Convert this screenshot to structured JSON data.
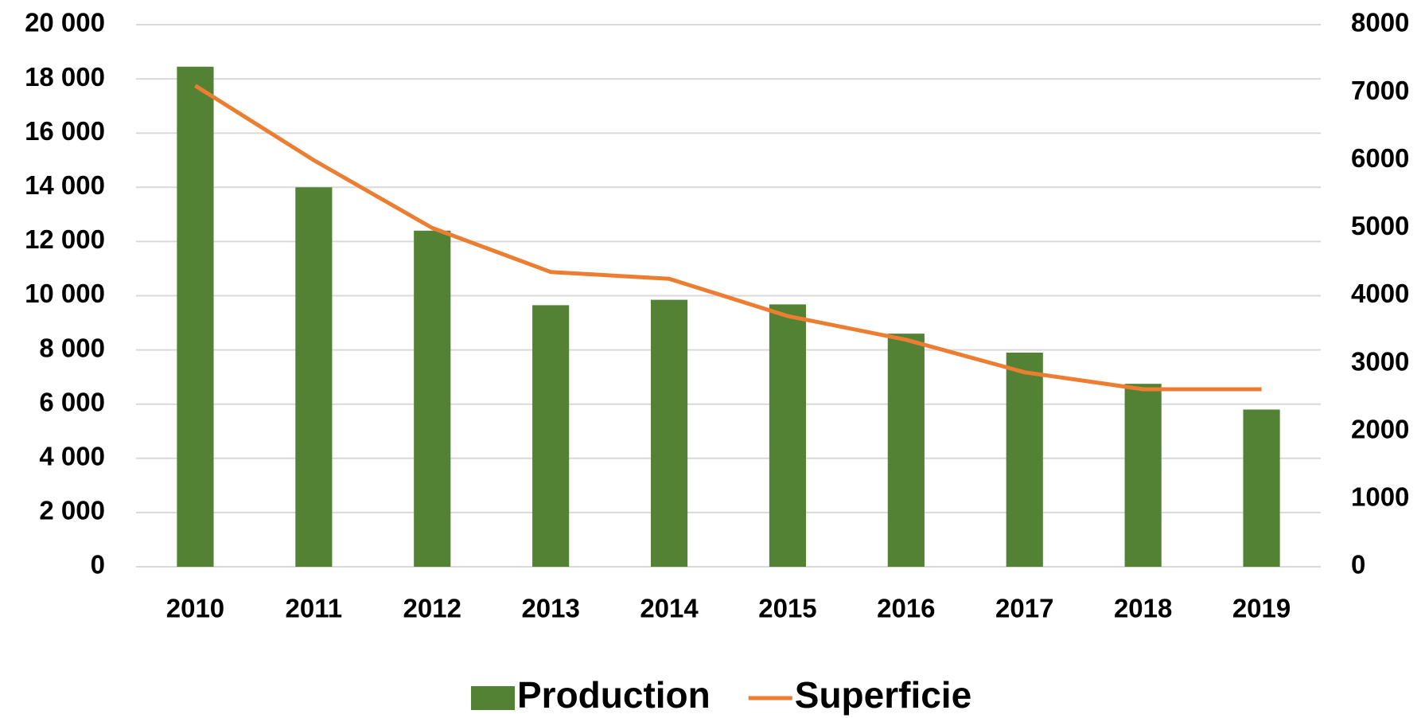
{
  "chart_data": {
    "type": "bar",
    "categories": [
      "2010",
      "2011",
      "2012",
      "2013",
      "2014",
      "2015",
      "2016",
      "2017",
      "2018",
      "2019"
    ],
    "series": [
      {
        "name": "Production",
        "type": "bar",
        "color": "#548235",
        "values": [
          18450,
          14000,
          12400,
          9650,
          9850,
          9680,
          8600,
          7900,
          6750,
          5800
        ]
      },
      {
        "name": "Superficie",
        "type": "line",
        "axis": "y2",
        "color": "#ed7d31",
        "values": [
          7100,
          6000,
          5000,
          4350,
          4250,
          3700,
          3350,
          2870,
          2620,
          2620
        ]
      }
    ],
    "ylim": [
      0,
      20000
    ],
    "yticks": [
      0,
      {
        "value": 2000,
        "label": "2 000"
      },
      {
        "value": 4000,
        "label": "4 000"
      },
      {
        "value": 6000,
        "label": "6 000"
      },
      {
        "value": 8000,
        "label": "8 000"
      },
      {
        "value": 10000,
        "label": "10 000"
      },
      {
        "value": 12000,
        "label": "12 000"
      },
      {
        "value": 14000,
        "label": "14 000"
      },
      {
        "value": 16000,
        "label": "16 000"
      },
      {
        "value": 18000,
        "label": "18 000"
      },
      {
        "value": 20000,
        "label": "20 000"
      }
    ],
    "y2lim": [
      0,
      8000
    ],
    "y2ticks": [
      0,
      1000,
      2000,
      3000,
      4000,
      5000,
      6000,
      7000,
      8000
    ],
    "grid": true,
    "legend": "bottom"
  }
}
